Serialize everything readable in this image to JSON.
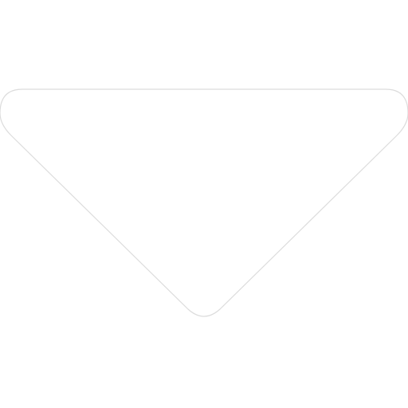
{
  "icon": {
    "name": "caret-down-icon",
    "fill_color": "#ffffff",
    "outline_color": "#dcdcdc",
    "background_color": "#ffffff"
  }
}
